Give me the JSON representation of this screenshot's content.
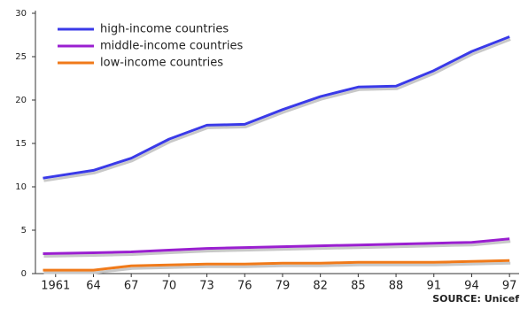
{
  "chart_data": {
    "type": "line",
    "source": "SOURCE: Unicef",
    "x": [
      1960,
      1964,
      1967,
      1970,
      1973,
      1976,
      1979,
      1982,
      1985,
      1988,
      1991,
      1994,
      1997
    ],
    "series": [
      {
        "name": "high-income countries",
        "color": "#3a3ae8",
        "values": [
          11.0,
          11.9,
          13.3,
          15.5,
          17.1,
          17.2,
          18.9,
          20.4,
          21.5,
          21.6,
          23.4,
          25.6,
          27.3
        ]
      },
      {
        "name": "middle-income countries",
        "color": "#9a1fd0",
        "values": [
          2.3,
          2.4,
          2.5,
          2.7,
          2.9,
          3.0,
          3.1,
          3.2,
          3.3,
          3.4,
          3.5,
          3.6,
          4.0
        ]
      },
      {
        "name": "low-income countries",
        "color": "#f07a1a",
        "values": [
          0.4,
          0.4,
          0.9,
          1.0,
          1.1,
          1.1,
          1.2,
          1.2,
          1.3,
          1.3,
          1.3,
          1.4,
          1.5
        ]
      }
    ],
    "xlim": [
      1959.4,
      1997.2
    ],
    "xticks": [
      1961,
      {
        "value": 1964,
        "label": "64"
      },
      {
        "value": 1967,
        "label": "67"
      },
      {
        "value": 1970,
        "label": "70"
      },
      {
        "value": 1973,
        "label": "73"
      },
      {
        "value": 1976,
        "label": "76"
      },
      {
        "value": 1979,
        "label": "79"
      },
      {
        "value": 1982,
        "label": "82"
      },
      {
        "value": 1985,
        "label": "85"
      },
      {
        "value": 1988,
        "label": "88"
      },
      {
        "value": 1991,
        "label": "91"
      },
      {
        "value": 1994,
        "label": "94"
      },
      {
        "value": 1997,
        "label": "97"
      }
    ],
    "ylim": [
      0,
      30
    ],
    "yticks": [
      0,
      5,
      10,
      15,
      20,
      25,
      30
    ],
    "grid": false,
    "legend": "top-left"
  }
}
